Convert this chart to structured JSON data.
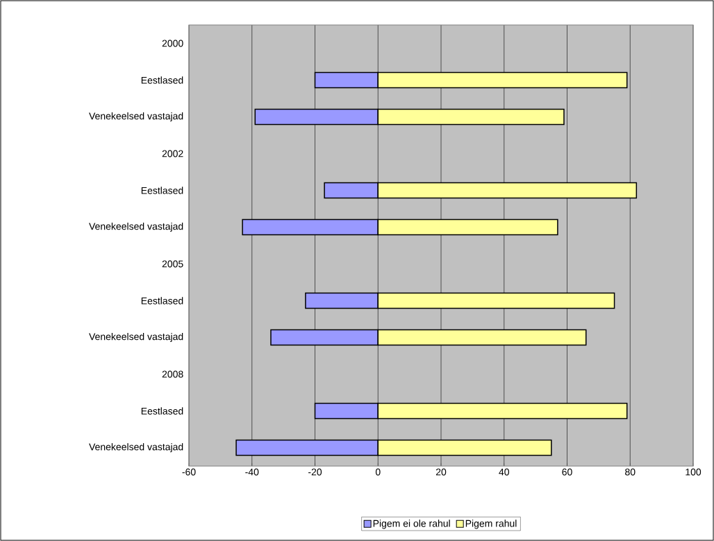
{
  "chart_data": {
    "type": "bar",
    "orientation": "horizontal",
    "stacked": true,
    "categories": [
      "2000",
      "Eestlased",
      "Venekeelsed vastajad",
      "2002",
      "Eestlased",
      "Venekeelsed vastajad",
      "2005",
      "Eestlased",
      "Venekeelsed vastajad",
      "2008",
      "Eestlased",
      "Venekeelsed vastajad"
    ],
    "series": [
      {
        "name": "Pigem ei ole rahul",
        "color": "#9999ff",
        "values": [
          null,
          -20,
          -39,
          null,
          -17,
          -43,
          null,
          -23,
          -34,
          null,
          -20,
          -45
        ]
      },
      {
        "name": "Pigem rahul",
        "color": "#ffff99",
        "values": [
          null,
          79,
          59,
          null,
          82,
          57,
          null,
          75,
          66,
          null,
          79,
          55
        ]
      }
    ],
    "xlim": [
      -60,
      100
    ],
    "xticks": [
      -60,
      -40,
      -20,
      0,
      20,
      40,
      60,
      80,
      100
    ],
    "grid": "x",
    "legend": "bottom"
  }
}
